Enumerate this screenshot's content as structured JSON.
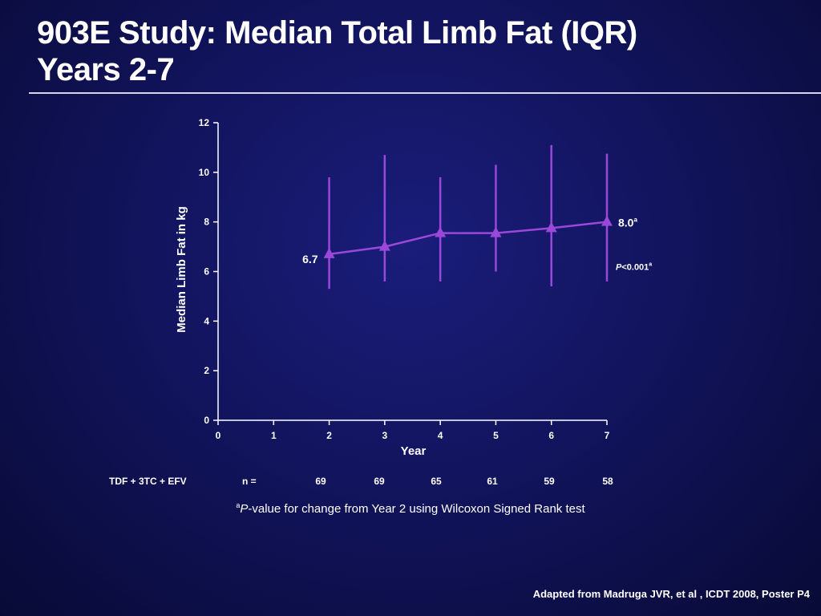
{
  "slide": {
    "title_line1": "903E Study: Median Total Limb Fat (IQR)",
    "title_line2": "Years 2-7",
    "footnote_marker": "a",
    "footnote_p": "P",
    "footnote_text": "-value for change from Year 2 using Wilcoxon Signed Rank test",
    "source": "Adapted from Madruga JVR, et al , ICDT 2008, Poster P4"
  },
  "table": {
    "group_label": "TDF + 3TC + EFV",
    "n_label": "n =",
    "n_values": [
      "69",
      "69",
      "65",
      "61",
      "59",
      "58"
    ]
  },
  "colors": {
    "series": "#9b47d9",
    "axis": "#ffffff",
    "text": "#ffffff"
  },
  "chart_data": {
    "type": "line",
    "xlabel": "Year",
    "ylabel": "Median Limb Fat in kg",
    "xlim": [
      0,
      7
    ],
    "ylim": [
      0,
      12
    ],
    "x_ticks": [
      0,
      1,
      2,
      3,
      4,
      5,
      6,
      7
    ],
    "y_ticks": [
      0,
      2,
      4,
      6,
      8,
      10,
      12
    ],
    "series": [
      {
        "x": [
          2,
          3,
          4,
          5,
          6,
          7
        ],
        "y": [
          6.7,
          7.0,
          7.55,
          7.55,
          7.75,
          8.0
        ],
        "iqr_low": [
          5.3,
          5.6,
          5.6,
          6.0,
          5.4,
          5.6
        ],
        "iqr_high": [
          9.8,
          10.7,
          9.8,
          10.3,
          11.1,
          10.75
        ]
      }
    ],
    "annotations": [
      {
        "text": "6.7",
        "x": 2,
        "y": 6.7
      },
      {
        "text": "8.0",
        "sup": "a",
        "x": 7,
        "y": 8.0
      },
      {
        "text": "P",
        "rest": "<0.001",
        "sup": "a",
        "x": 7,
        "y": 6.0
      }
    ]
  }
}
